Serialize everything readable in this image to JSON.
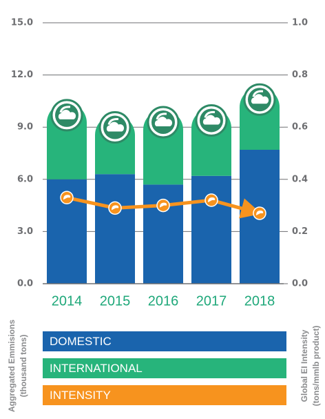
{
  "chart_data": {
    "type": "bar",
    "categories": [
      "2014",
      "2015",
      "2016",
      "2017",
      "2018"
    ],
    "series": [
      {
        "name": "DOMESTIC",
        "color": "#1a64ad",
        "values": [
          6.0,
          6.3,
          5.7,
          6.2,
          7.7
        ]
      },
      {
        "name": "INTERNATIONAL",
        "color": "#27b47b",
        "values": [
          4.4,
          3.4,
          4.3,
          3.9,
          3.6
        ]
      },
      {
        "name": "INTENSITY",
        "color": "#f7931e",
        "type": "line",
        "axis": "y2",
        "values": [
          0.33,
          0.29,
          0.3,
          0.32,
          0.27
        ]
      }
    ],
    "ylim": [
      0,
      15
    ],
    "yticks": [
      {
        "value": 0,
        "label": "0.0"
      },
      {
        "value": 3,
        "label": "3.0"
      },
      {
        "value": 6,
        "label": "6.0"
      },
      {
        "value": 9,
        "label": "9.0"
      },
      {
        "value": 12,
        "label": "12.0"
      },
      {
        "value": 15,
        "label": "15.0"
      }
    ],
    "y2lim": [
      0,
      1
    ],
    "y2ticks": [
      {
        "value": 0,
        "label": "0.0"
      },
      0.2,
      0.4,
      0.6,
      0.8,
      {
        "value": 1,
        "label": "1.0"
      }
    ],
    "y_label": [
      "Aggregated Emmisions",
      "(thousand tons)"
    ],
    "y2_label": [
      "Global EI Intensity",
      "(tons/mmlb product)"
    ],
    "grid": true
  }
}
